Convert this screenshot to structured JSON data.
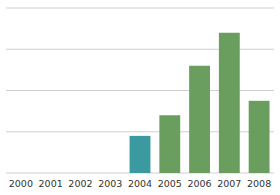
{
  "chart_data": {
    "type": "bar",
    "categories": [
      "2000",
      "2001",
      "2002",
      "2003",
      "2004",
      "2005",
      "2006",
      "2007",
      "2008"
    ],
    "values": [
      0,
      0,
      0,
      0,
      18,
      28,
      52,
      68,
      35
    ],
    "colors": [
      "#6a9e5e",
      "#6a9e5e",
      "#6a9e5e",
      "#6a9e5e",
      "#3a9aa0",
      "#6a9e5e",
      "#6a9e5e",
      "#6a9e5e",
      "#6a9e5e"
    ],
    "ylim": [
      0,
      80
    ],
    "yticks": [
      0,
      20,
      40,
      60,
      80
    ],
    "grid": true,
    "tick_labels": "x"
  }
}
